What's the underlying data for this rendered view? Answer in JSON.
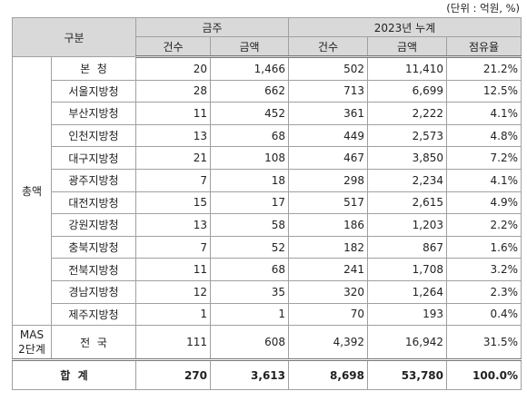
{
  "unit_note": "(단위 : 억원, %)",
  "table": {
    "header": {
      "category": "구분",
      "weekly": "금주",
      "cumulative": "2023년 누계",
      "columns": [
        "건수",
        "금액",
        "건수",
        "금액",
        "점유율"
      ]
    },
    "group_label": "총액",
    "rows": [
      [
        "본  청",
        "20",
        "1,466",
        "502",
        "11,410",
        "21.2%"
      ],
      [
        "서울지방청",
        "28",
        "662",
        "713",
        "6,699",
        "12.5%"
      ],
      [
        "부산지방청",
        "11",
        "452",
        "361",
        "2,222",
        "4.1%"
      ],
      [
        "인천지방청",
        "13",
        "68",
        "449",
        "2,573",
        "4.8%"
      ],
      [
        "대구지방청",
        "21",
        "108",
        "467",
        "3,850",
        "7.2%"
      ],
      [
        "광주지방청",
        "7",
        "18",
        "298",
        "2,234",
        "4.1%"
      ],
      [
        "대전지방청",
        "15",
        "17",
        "517",
        "2,615",
        "4.9%"
      ],
      [
        "강원지방청",
        "13",
        "58",
        "186",
        "1,203",
        "2.2%"
      ],
      [
        "충북지방청",
        "7",
        "52",
        "182",
        "867",
        "1.6%"
      ],
      [
        "전북지방청",
        "11",
        "68",
        "241",
        "1,708",
        "3.2%"
      ],
      [
        "경남지방청",
        "12",
        "35",
        "320",
        "1,264",
        "2.3%"
      ],
      [
        "제주지방청",
        "1",
        "1",
        "70",
        "193",
        "0.4%"
      ]
    ],
    "mas_label": [
      "MAS",
      "2단계"
    ],
    "mas_row": [
      "전  국",
      "111",
      "608",
      "4,392",
      "16,942",
      "31.5%"
    ],
    "total_row": [
      "합  계",
      "270",
      "3,613",
      "8,698",
      "53,780",
      "100.0%"
    ]
  }
}
